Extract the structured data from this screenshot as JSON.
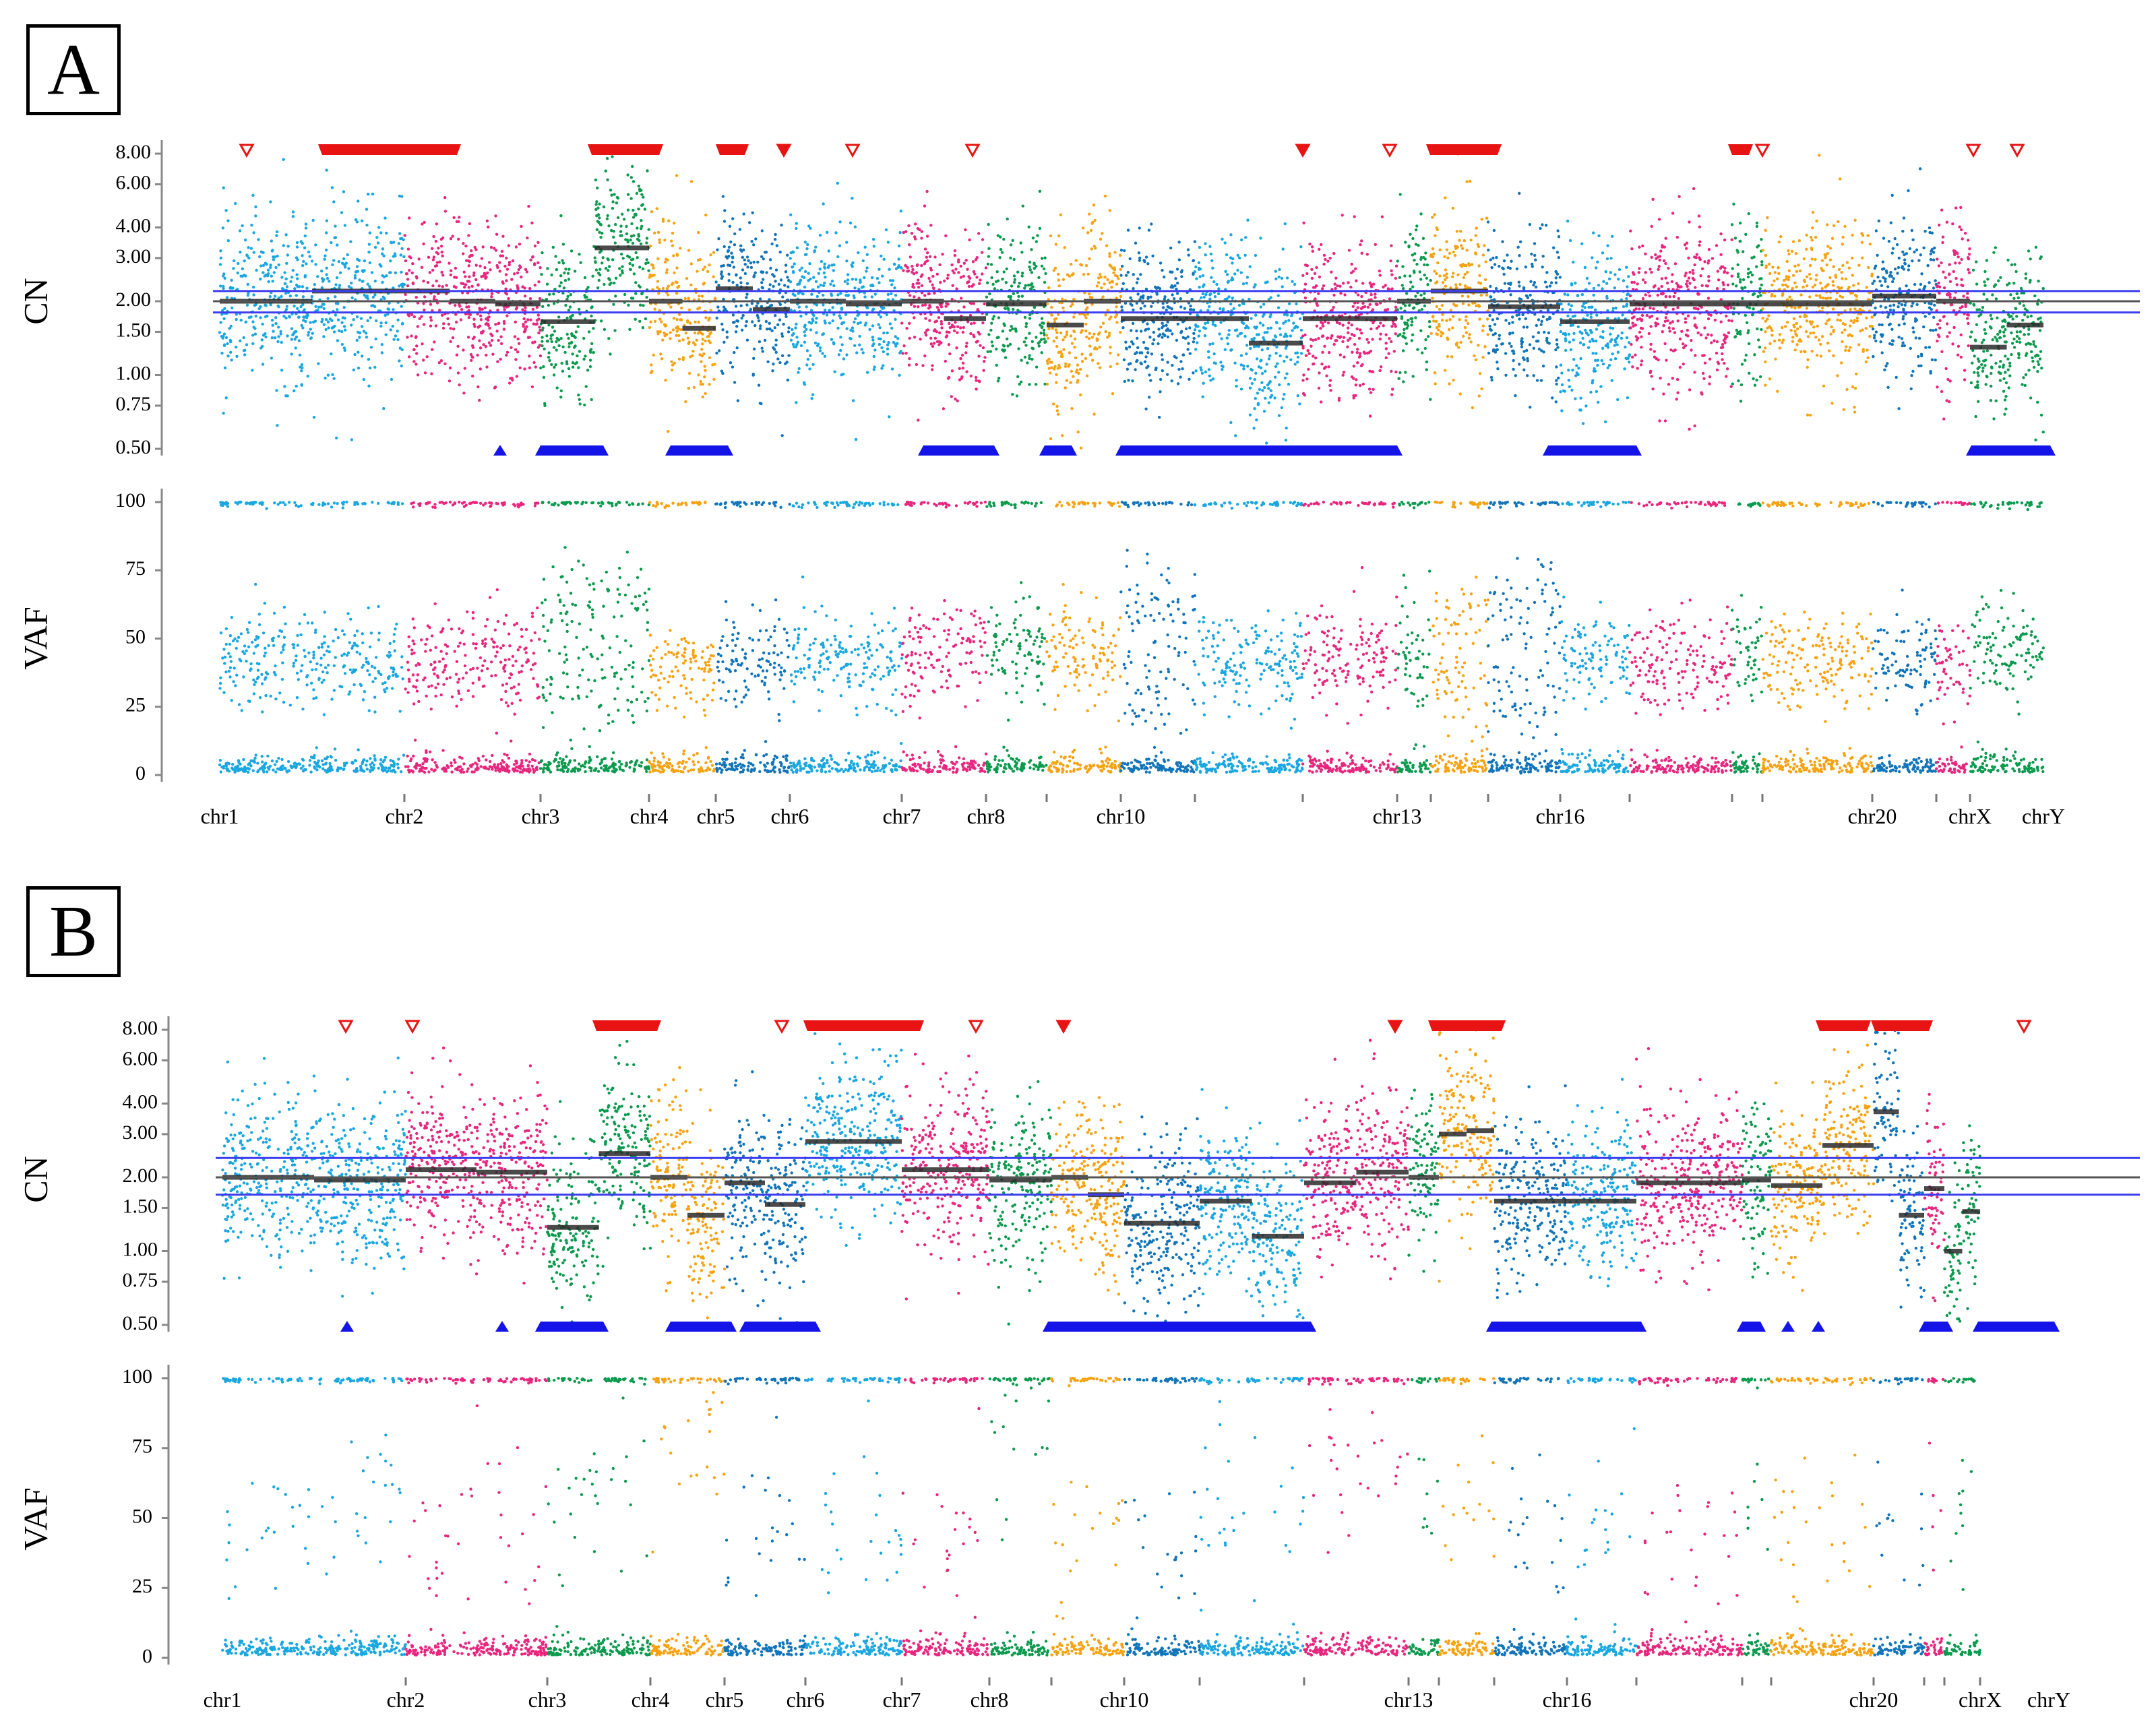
{
  "figure": {
    "colors": {
      "light_blue": "#1aa7e0",
      "pink": "#e8267e",
      "green": "#0c9a4f",
      "orange": "#f6a313",
      "dark_blue": "#1275b9",
      "gain_marker": "#e81414",
      "loss_marker": "#1414e8",
      "segment_line": "#2b2b2b",
      "reference_line": "#3d3df0"
    }
  },
  "chart_data": [
    {
      "panel": "A",
      "type": "scatter",
      "subplots": [
        "CN",
        "VAF"
      ],
      "cn_axis": {
        "label": "CN",
        "scale": "log2",
        "ylim": [
          0.5,
          8.0
        ],
        "ticks": [
          "8.00",
          "6.00",
          "4.00",
          "3.00",
          "2.00",
          "1.50",
          "1.00",
          "0.75",
          "0.50"
        ]
      },
      "vaf_axis": {
        "label": "VAF",
        "ylim": [
          0,
          100
        ],
        "ticks": [
          "100",
          "75",
          "50",
          "25",
          "0"
        ]
      },
      "reference_cn": [
        1.8,
        2.0,
        2.2
      ],
      "chromosome_labels": [
        "chr1",
        "chr2",
        "chr3",
        "chr4",
        "chr5",
        "chr6",
        "chr7",
        "chr8",
        "chr10",
        "chr13",
        "chr16",
        "chr20",
        "chrX",
        "chrY"
      ],
      "chromosomes": [
        {
          "color": "light_blue",
          "cn": [
            2.0,
            2.2
          ],
          "vaf": [
            42
          ]
        },
        {
          "color": "pink",
          "cn": [
            2.2,
            2.0,
            1.95
          ],
          "vaf": [
            42
          ]
        },
        {
          "color": "green",
          "cn": [
            1.65,
            3.3
          ],
          "vaf": [
            33,
            62
          ]
        },
        {
          "color": "orange",
          "cn": [
            2.0,
            1.55
          ],
          "vaf": [
            40
          ]
        },
        {
          "color": "dark_blue",
          "cn": [
            2.25,
            1.85
          ],
          "vaf": [
            42
          ]
        },
        {
          "color": "light_blue",
          "cn": [
            2.0,
            1.95
          ],
          "vaf": [
            42
          ]
        },
        {
          "color": "pink",
          "cn": [
            2.0,
            1.7
          ],
          "vaf": [
            45
          ]
        },
        {
          "color": "green",
          "cn": [
            1.95
          ],
          "vaf": [
            48
          ]
        },
        {
          "color": "orange",
          "cn": [
            1.6,
            2.0
          ],
          "vaf": [
            45
          ]
        },
        {
          "color": "dark_blue",
          "cn": [
            1.7
          ],
          "vaf": [
            30,
            60
          ]
        },
        {
          "color": "light_blue",
          "cn": [
            1.7,
            1.35
          ],
          "vaf": [
            42
          ]
        },
        {
          "color": "pink",
          "cn": [
            1.7
          ],
          "vaf": [
            42
          ]
        },
        {
          "color": "green",
          "cn": [
            2.0
          ],
          "vaf": [
            45
          ]
        },
        {
          "color": "orange",
          "cn": [
            2.2
          ],
          "vaf": [
            33,
            55
          ]
        },
        {
          "color": "dark_blue",
          "cn": [
            1.9
          ],
          "vaf": [
            30,
            62
          ]
        },
        {
          "color": "light_blue",
          "cn": [
            1.65
          ],
          "vaf": [
            42
          ]
        },
        {
          "color": "pink",
          "cn": [
            1.95
          ],
          "vaf": [
            40
          ]
        },
        {
          "color": "green",
          "cn": [
            1.95
          ],
          "vaf": [
            45
          ]
        },
        {
          "color": "orange",
          "cn": [
            1.95
          ],
          "vaf": [
            42
          ]
        },
        {
          "color": "dark_blue",
          "cn": [
            2.1
          ],
          "vaf": [
            42
          ]
        },
        {
          "color": "pink",
          "cn": [
            2.0
          ],
          "vaf": [
            40
          ]
        },
        {
          "color": "green",
          "cn": [
            1.3,
            1.6
          ],
          "vaf": [
            45
          ]
        }
      ]
    },
    {
      "panel": "B",
      "type": "scatter",
      "subplots": [
        "CN",
        "VAF"
      ],
      "cn_axis": {
        "label": "CN",
        "scale": "log2",
        "ylim": [
          0.5,
          8.0
        ],
        "ticks": [
          "8.00",
          "6.00",
          "4.00",
          "3.00",
          "2.00",
          "1.50",
          "1.00",
          "0.75",
          "0.50"
        ]
      },
      "vaf_axis": {
        "label": "VAF",
        "ylim": [
          0,
          100
        ],
        "ticks": [
          "100",
          "75",
          "50",
          "25",
          "0"
        ]
      },
      "reference_cn": [
        1.7,
        2.0,
        2.4
      ],
      "chromosome_labels": [
        "chr1",
        "chr2",
        "chr3",
        "chr4",
        "chr5",
        "chr6",
        "chr7",
        "chr8",
        "chr10",
        "chr13",
        "chr16",
        "chr20",
        "chrX",
        "chrY"
      ],
      "chromosomes": [
        {
          "color": "light_blue",
          "cn": [
            2.0,
            1.95
          ],
          "vaf": [
            50
          ]
        },
        {
          "color": "pink",
          "cn": [
            2.15,
            2.1
          ],
          "vaf": [
            42
          ]
        },
        {
          "color": "green",
          "cn": [
            1.25,
            2.5
          ],
          "vaf": [
            60
          ]
        },
        {
          "color": "orange",
          "cn": [
            2.0,
            1.4
          ],
          "vaf": [
            80
          ]
        },
        {
          "color": "dark_blue",
          "cn": [
            1.9,
            1.55
          ],
          "vaf": [
            42
          ]
        },
        {
          "color": "light_blue",
          "cn": [
            2.8
          ],
          "vaf": [
            42
          ]
        },
        {
          "color": "pink",
          "cn": [
            2.15
          ],
          "vaf": [
            45
          ]
        },
        {
          "color": "green",
          "cn": [
            1.95
          ],
          "vaf": [
            88
          ]
        },
        {
          "color": "orange",
          "cn": [
            2.0,
            1.7
          ],
          "vaf": [
            45
          ]
        },
        {
          "color": "dark_blue",
          "cn": [
            1.3
          ],
          "vaf": [
            45
          ]
        },
        {
          "color": "light_blue",
          "cn": [
            1.6,
            1.15
          ],
          "vaf": [
            50
          ]
        },
        {
          "color": "pink",
          "cn": [
            1.9,
            2.1
          ],
          "vaf": [
            70
          ]
        },
        {
          "color": "green",
          "cn": [
            2.0
          ],
          "vaf": [
            60
          ]
        },
        {
          "color": "orange",
          "cn": [
            3.0,
            3.1
          ],
          "vaf": [
            45
          ]
        },
        {
          "color": "dark_blue",
          "cn": [
            1.6
          ],
          "vaf": [
            45
          ]
        },
        {
          "color": "light_blue",
          "cn": [
            1.6
          ],
          "vaf": [
            45
          ]
        },
        {
          "color": "pink",
          "cn": [
            1.9
          ],
          "vaf": [
            40
          ]
        },
        {
          "color": "green",
          "cn": [
            1.95
          ],
          "vaf": [
            60
          ]
        },
        {
          "color": "orange",
          "cn": [
            1.85,
            2.7
          ],
          "vaf": [
            45
          ]
        },
        {
          "color": "dark_blue",
          "cn": [
            3.7,
            1.4
          ],
          "vaf": [
            42
          ]
        },
        {
          "color": "pink",
          "cn": [
            1.8
          ],
          "vaf": [
            45
          ]
        },
        {
          "color": "green",
          "cn": [
            1.0,
            1.45
          ],
          "vaf": [
            65
          ]
        }
      ]
    }
  ]
}
